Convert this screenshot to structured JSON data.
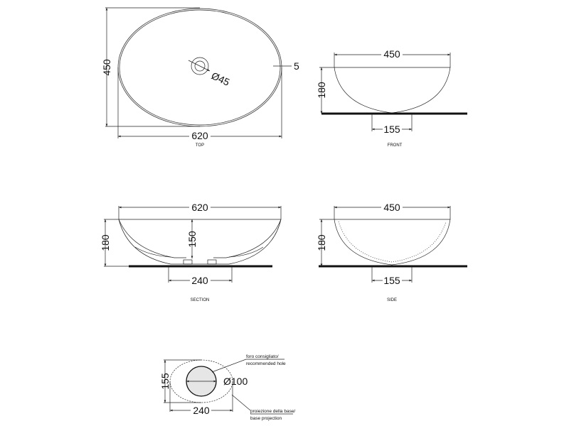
{
  "views": {
    "top": {
      "caption": "TOP",
      "width": "620",
      "depth": "450",
      "drain": "Ø45",
      "rim": "5"
    },
    "front": {
      "caption": "FRONT",
      "width": "450",
      "height": "180",
      "base": "155"
    },
    "section": {
      "caption": "SECTION",
      "width": "620",
      "height": "180",
      "inner_depth": "150",
      "base": "240"
    },
    "side": {
      "caption": "SIDE",
      "width": "450",
      "height": "180",
      "base": "155"
    },
    "cutout": {
      "height": "155",
      "width": "240",
      "hole": "Ø100",
      "hole_note_1": "foro consigliato/",
      "hole_note_2": "recommended hole",
      "base_note_1": "proiezione della base/",
      "base_note_2": "base projection"
    }
  },
  "colors": {
    "line": "#222222",
    "hole_fill": "#e6e6e6"
  }
}
